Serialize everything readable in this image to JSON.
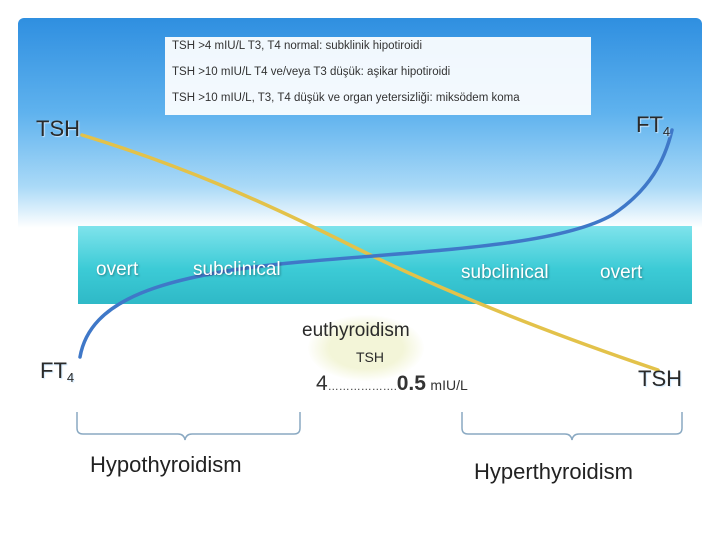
{
  "notes": [
    "TSH >4 mIU/L  T3, T4 normal:  subklinik hipotiroidi",
    "TSH >10 mIU/L  T4 ve/veya T3 düşük: aşikar hipotiroidi",
    "TSH >10 mIU/L, T3, T4 düşük ve organ yetersizliği: miksödem koma"
  ],
  "axis_labels": {
    "tsh_top_left": "TSH",
    "ft4_top_right": "FT",
    "ft4_top_right_sub": "4",
    "ft4_bottom_left": "FT",
    "ft4_bottom_left_sub": "4",
    "tsh_bottom_right": "TSH"
  },
  "band_labels": {
    "overt_left": "overt",
    "subclinical_left": "subclinical",
    "subclinical_right": "subclinical",
    "overt_right": "overt"
  },
  "euthyroid": {
    "title": "euthyroidism",
    "tsh_label": "TSH",
    "range_low": "4",
    "range_dots": "……………….",
    "range_high": "0.5",
    "unit": "mIU/L"
  },
  "groups": {
    "left": "Hypothyroidism",
    "right": "Hyperthyroidism"
  },
  "colors": {
    "tsh_curve": "#e3c24a",
    "ft4_curve": "#3f78c8",
    "band": "#3ccbd6",
    "bracket": "#8aa9c2"
  }
}
